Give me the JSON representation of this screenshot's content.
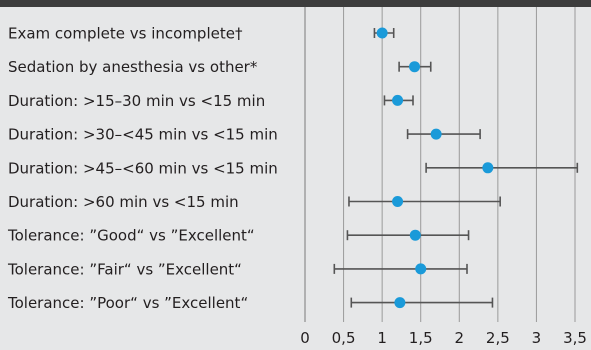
{
  "chart_data": {
    "type": "forest",
    "title": "",
    "xlabel": "",
    "ylabel": "",
    "xlim": [
      0,
      3.5
    ],
    "x_ticks": [
      0,
      0.5,
      1,
      1.5,
      2,
      2.5,
      3,
      3.5
    ],
    "x_tick_labels": [
      "0",
      "0,5",
      "1",
      "1,5",
      "2",
      "2,5",
      "3",
      "3,5"
    ],
    "grid": true,
    "reference_line": 1,
    "colors": {
      "background": "#e6e7e8",
      "header_band": "#3d3d3d",
      "point": "#1a9ad9",
      "whisker": "#555555",
      "grid": "#9a9a9a",
      "text": "#231f20"
    },
    "rows": [
      {
        "label": "Exam complete vs incomplete†",
        "estimate": 1.0,
        "ci_low": 0.9,
        "ci_high": 1.15
      },
      {
        "label": "Sedation by anesthesia vs other*",
        "estimate": 1.42,
        "ci_low": 1.22,
        "ci_high": 1.63
      },
      {
        "label": "Duration: >15–30 min vs <15 min",
        "estimate": 1.2,
        "ci_low": 1.03,
        "ci_high": 1.4
      },
      {
        "label": "Duration: >30–<45 min vs <15 min",
        "estimate": 1.7,
        "ci_low": 1.33,
        "ci_high": 2.27
      },
      {
        "label": "Duration: >45–<60 min vs <15 min",
        "estimate": 2.37,
        "ci_low": 1.57,
        "ci_high": 3.53
      },
      {
        "label": "Duration: >60 min vs <15 min",
        "estimate": 1.2,
        "ci_low": 0.57,
        "ci_high": 2.53
      },
      {
        "label": "Tolerance: ”Good“ vs ”Excellent“",
        "estimate": 1.43,
        "ci_low": 0.55,
        "ci_high": 2.12
      },
      {
        "label": "Tolerance: ”Fair“ vs ”Excellent“",
        "estimate": 1.5,
        "ci_low": 0.38,
        "ci_high": 2.1
      },
      {
        "label": "Tolerance: ”Poor“ vs ”Excellent“",
        "estimate": 1.23,
        "ci_low": 0.6,
        "ci_high": 2.43
      }
    ]
  }
}
